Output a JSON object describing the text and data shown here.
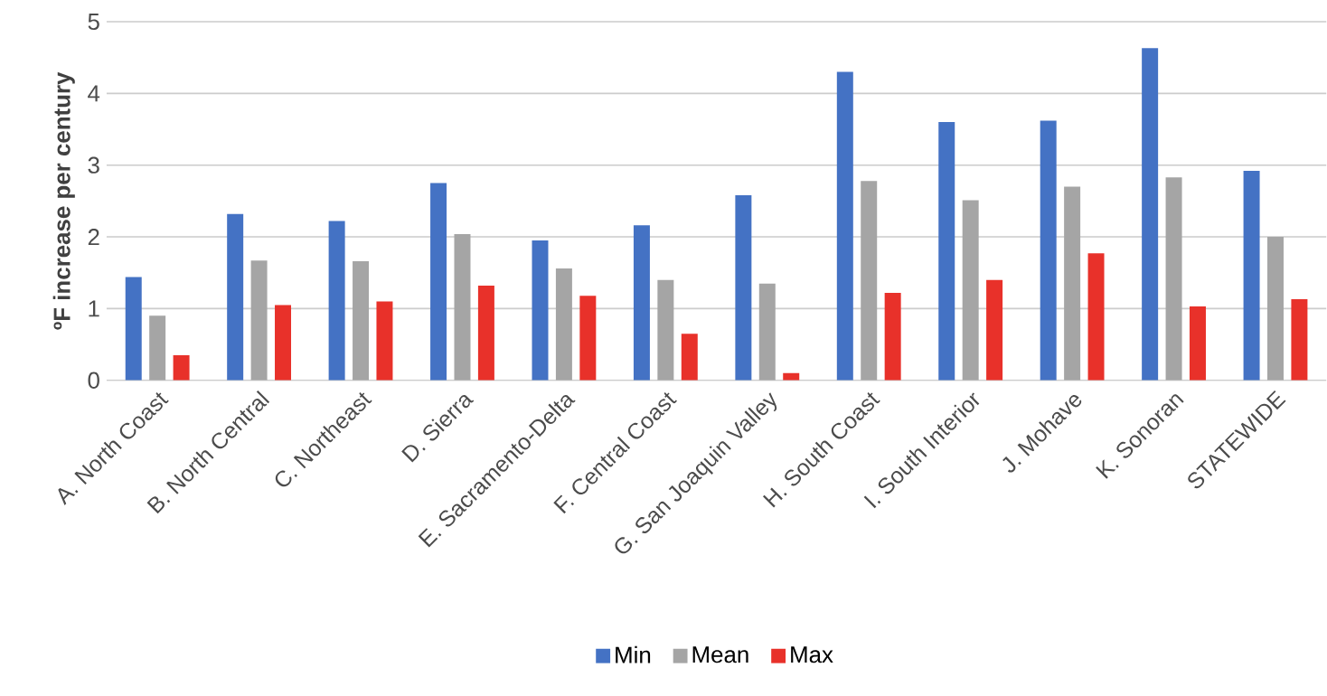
{
  "chart_data": {
    "type": "bar",
    "ylabel": "ºF increase per century",
    "categories": [
      "A. North Coast",
      "B. North Central",
      "C. Northeast",
      "D. Sierra",
      "E. Sacramento-Delta",
      "F. Central Coast",
      "G. San Joaquin Valley",
      "H. South Coast",
      "I. South Interior",
      "J. Mohave",
      "K. Sonoran",
      "STATEWIDE"
    ],
    "series": [
      {
        "name": "Min",
        "color": "#4472c4",
        "values": [
          1.44,
          2.32,
          2.22,
          2.75,
          1.95,
          2.16,
          2.58,
          4.3,
          3.6,
          3.62,
          4.63,
          2.92
        ]
      },
      {
        "name": "Mean",
        "color": "#a5a5a5",
        "values": [
          0.9,
          1.67,
          1.66,
          2.04,
          1.56,
          1.4,
          1.35,
          2.78,
          2.51,
          2.7,
          2.83,
          2.0
        ]
      },
      {
        "name": "Max",
        "color": "#e8312a",
        "values": [
          0.35,
          1.05,
          1.1,
          1.32,
          1.18,
          0.65,
          0.1,
          1.22,
          1.4,
          1.77,
          1.03,
          1.13
        ]
      }
    ],
    "ylim": [
      0,
      5
    ],
    "yticks": [
      0,
      1,
      2,
      3,
      4,
      5
    ],
    "grid": "y",
    "legend": "bottom"
  }
}
